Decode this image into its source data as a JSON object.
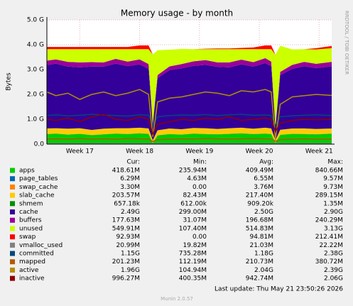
{
  "chart_data": {
    "type": "area",
    "title": "Memory usage - by month",
    "y_label": "Bytes",
    "side_note": "RRDTOOL / TOBI OETIKER",
    "x": [
      16.45,
      16.6,
      16.8,
      17.0,
      17.2,
      17.4,
      17.6,
      17.8,
      18.0,
      18.15,
      18.22,
      18.3,
      18.5,
      18.7,
      18.9,
      19.1,
      19.3,
      19.5,
      19.7,
      19.9,
      20.1,
      20.2,
      20.27,
      20.35,
      20.55,
      20.75,
      20.95,
      21.21
    ],
    "xlim": [
      16.45,
      21.21
    ],
    "xticks": [
      {
        "value": 17,
        "label": "Week 17"
      },
      {
        "value": 18,
        "label": "Week 18"
      },
      {
        "value": 19,
        "label": "Week 19"
      },
      {
        "value": 20,
        "label": "Week 20"
      },
      {
        "value": 21,
        "label": "Week 21"
      }
    ],
    "ylim": [
      0,
      5
    ],
    "yticks": [
      {
        "value": 0,
        "label": "0.0"
      },
      {
        "value": 1,
        "label": "1.0 G"
      },
      {
        "value": 2,
        "label": "2.0 G"
      },
      {
        "value": 3,
        "label": "3.0 G"
      },
      {
        "value": 4,
        "label": "4.0 G"
      },
      {
        "value": 5,
        "label": "5.0 G"
      }
    ],
    "grid": true,
    "stat_headers": [
      "Cur:",
      "Min:",
      "Avg:",
      "Max:"
    ],
    "series": [
      {
        "name": "apps",
        "color": "#00CC00",
        "kind": "area",
        "stats": [
          "418.61M",
          "235.94M",
          "409.49M",
          "840.66M"
        ],
        "values": [
          0.4,
          0.42,
          0.38,
          0.41,
          0.36,
          0.39,
          0.42,
          0.4,
          0.43,
          0.41,
          0.05,
          0.35,
          0.4,
          0.38,
          0.42,
          0.4,
          0.39,
          0.41,
          0.43,
          0.4,
          0.42,
          0.4,
          0.06,
          0.37,
          0.41,
          0.4,
          0.39,
          0.42
        ]
      },
      {
        "name": "page_tables",
        "color": "#0066B3",
        "kind": "area",
        "stats": [
          "6.29M",
          "4.63M",
          "6.55M",
          "9.57M"
        ],
        "values": [
          0.006,
          0.006,
          0.006,
          0.006,
          0.006,
          0.006,
          0.006,
          0.006,
          0.006,
          0.006,
          0.005,
          0.006,
          0.006,
          0.006,
          0.006,
          0.006,
          0.006,
          0.006,
          0.006,
          0.006,
          0.006,
          0.006,
          0.005,
          0.006,
          0.006,
          0.006,
          0.006,
          0.006
        ]
      },
      {
        "name": "swap_cache",
        "color": "#FF8000",
        "kind": "area",
        "stats": [
          "3.30M",
          "0.00",
          "3.76M",
          "9.73M"
        ],
        "values": [
          0.004,
          0.004,
          0.004,
          0.004,
          0.004,
          0.004,
          0.004,
          0.004,
          0.004,
          0.004,
          0.0,
          0.002,
          0.003,
          0.004,
          0.004,
          0.004,
          0.004,
          0.004,
          0.004,
          0.004,
          0.004,
          0.004,
          0.0,
          0.002,
          0.003,
          0.004,
          0.004,
          0.003
        ]
      },
      {
        "name": "slab_cache",
        "color": "#FFCC00",
        "kind": "area",
        "stats": [
          "203.57M",
          "82.43M",
          "217.40M",
          "289.15M"
        ],
        "values": [
          0.22,
          0.21,
          0.23,
          0.22,
          0.2,
          0.22,
          0.21,
          0.23,
          0.22,
          0.21,
          0.1,
          0.2,
          0.22,
          0.21,
          0.22,
          0.23,
          0.21,
          0.22,
          0.22,
          0.21,
          0.23,
          0.22,
          0.09,
          0.2,
          0.21,
          0.22,
          0.21,
          0.2
        ]
      },
      {
        "name": "shmem",
        "color": "#008F00",
        "kind": "area",
        "stats": [
          "657.18k",
          "612.00k",
          "909.20k",
          "1.35M"
        ],
        "values": [
          0.0007,
          0.0007,
          0.0007,
          0.0007,
          0.0007,
          0.0007,
          0.0007,
          0.0007,
          0.0007,
          0.0007,
          0.0006,
          0.0007,
          0.0007,
          0.0007,
          0.0007,
          0.0007,
          0.0007,
          0.0007,
          0.0007,
          0.0007,
          0.0007,
          0.0007,
          0.0006,
          0.0007,
          0.0007,
          0.0007,
          0.0007,
          0.0007
        ]
      },
      {
        "name": "cache",
        "color": "#330099",
        "kind": "area",
        "stats": [
          "2.49G",
          "299.00M",
          "2.50G",
          "2.90G"
        ],
        "values": [
          2.55,
          2.6,
          2.5,
          2.45,
          2.55,
          2.5,
          2.6,
          2.5,
          2.55,
          2.4,
          0.6,
          2.1,
          2.35,
          2.45,
          2.5,
          2.55,
          2.5,
          2.45,
          2.55,
          2.5,
          2.6,
          2.5,
          0.5,
          2.2,
          2.4,
          2.5,
          2.45,
          2.5
        ]
      },
      {
        "name": "buffers",
        "color": "#990099",
        "kind": "area",
        "stats": [
          "177.63M",
          "31.07M",
          "196.68M",
          "240.29M"
        ],
        "values": [
          0.18,
          0.17,
          0.19,
          0.2,
          0.18,
          0.17,
          0.19,
          0.18,
          0.2,
          0.19,
          0.05,
          0.12,
          0.15,
          0.17,
          0.18,
          0.19,
          0.18,
          0.2,
          0.19,
          0.18,
          0.2,
          0.19,
          0.04,
          0.13,
          0.16,
          0.18,
          0.17,
          0.18
        ]
      },
      {
        "name": "unused",
        "color": "#CCFF00",
        "kind": "area",
        "stats": [
          "549.91M",
          "107.40M",
          "514.83M",
          "3.13G"
        ],
        "values": [
          0.46,
          0.41,
          0.51,
          0.53,
          0.52,
          0.53,
          0.39,
          0.5,
          0.41,
          0.6,
          2.8,
          1.0,
          0.67,
          0.61,
          0.49,
          0.44,
          0.53,
          0.53,
          0.42,
          0.52,
          0.36,
          0.5,
          2.9,
          1.05,
          0.62,
          0.51,
          0.58,
          0.55
        ]
      },
      {
        "name": "swap",
        "color": "#FF0000",
        "kind": "area",
        "stats": [
          "92.93M",
          "0.00",
          "94.81M",
          "212.41M"
        ],
        "values": [
          0.09,
          0.09,
          0.09,
          0.09,
          0.09,
          0.09,
          0.09,
          0.09,
          0.15,
          0.15,
          0.0,
          0.0,
          0.0,
          0.0,
          0.0,
          0.02,
          0.03,
          0.03,
          0.05,
          0.07,
          0.15,
          0.15,
          0.0,
          0.0,
          0.0,
          0.0,
          0.05,
          0.09
        ]
      },
      {
        "name": "vmalloc_used",
        "color": "#808080",
        "kind": "line",
        "stats": [
          "20.99M",
          "19.82M",
          "21.03M",
          "22.22M"
        ],
        "values": [
          0.021,
          0.021,
          0.021,
          0.021,
          0.021,
          0.021,
          0.021,
          0.021,
          0.021,
          0.021,
          0.02,
          0.021,
          0.021,
          0.021,
          0.021,
          0.021,
          0.021,
          0.021,
          0.021,
          0.021,
          0.021,
          0.021,
          0.02,
          0.021,
          0.021,
          0.021,
          0.021,
          0.021
        ]
      },
      {
        "name": "committed",
        "color": "#00487D",
        "kind": "line",
        "stats": [
          "1.15G",
          "735.28M",
          "1.18G",
          "2.38G"
        ],
        "values": [
          1.15,
          1.18,
          1.14,
          1.16,
          1.2,
          1.17,
          1.15,
          1.13,
          1.18,
          1.16,
          0.74,
          1.1,
          1.15,
          1.17,
          1.16,
          1.19,
          1.15,
          1.18,
          1.2,
          1.16,
          1.17,
          1.15,
          0.75,
          1.1,
          1.14,
          1.16,
          1.18,
          1.15
        ]
      },
      {
        "name": "mapped",
        "color": "#B35A00",
        "kind": "line",
        "stats": [
          "201.23M",
          "112.19M",
          "210.73M",
          "380.72M"
        ],
        "values": [
          0.2,
          0.21,
          0.2,
          0.22,
          0.2,
          0.21,
          0.2,
          0.22,
          0.21,
          0.2,
          0.11,
          0.18,
          0.2,
          0.21,
          0.2,
          0.22,
          0.21,
          0.2,
          0.21,
          0.22,
          0.21,
          0.2,
          0.12,
          0.18,
          0.2,
          0.21,
          0.2,
          0.2
        ]
      },
      {
        "name": "active",
        "color": "#B38F00",
        "kind": "line",
        "stats": [
          "1.96G",
          "104.94M",
          "2.04G",
          "2.39G"
        ],
        "values": [
          2.1,
          1.95,
          2.05,
          1.8,
          2.0,
          2.1,
          1.95,
          2.05,
          2.2,
          2.0,
          0.3,
          1.7,
          1.85,
          1.9,
          2.0,
          2.1,
          2.05,
          1.95,
          2.15,
          2.1,
          2.2,
          2.1,
          0.2,
          1.6,
          1.9,
          1.95,
          2.0,
          1.96
        ]
      },
      {
        "name": "inactive",
        "color": "#8F0000",
        "kind": "line",
        "stats": [
          "996.27M",
          "400.35M",
          "942.74M",
          "2.06G"
        ],
        "values": [
          1.0,
          0.95,
          1.05,
          0.9,
          1.1,
          1.2,
          1.0,
          0.95,
          1.1,
          1.0,
          0.4,
          0.8,
          0.9,
          1.0,
          0.95,
          1.05,
          1.0,
          1.1,
          0.95,
          1.0,
          1.05,
          1.0,
          0.5,
          0.85,
          0.95,
          1.0,
          0.98,
          1.0
        ]
      }
    ],
    "last_update": "Last update: Thu May 21 23:50:26 2026",
    "footer": "Munin 2.0.57"
  }
}
